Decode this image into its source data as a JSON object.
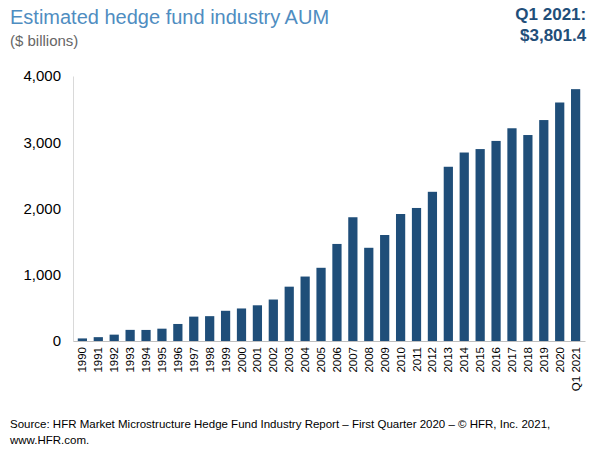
{
  "chart_data": {
    "type": "bar",
    "title": "Estimated hedge fund industry AUM",
    "subtitle": "($ billions)",
    "annotation": [
      "Q1 2021:",
      "$3,801.4"
    ],
    "source": [
      "Source: HFR Market Microstructure Hedge Fund Industry Report – First Quarter 2020 – © HFR, Inc. 2021,",
      "www.HFR.com."
    ],
    "categories": [
      "1990",
      "1991",
      "1992",
      "1993",
      "1994",
      "1995",
      "1996",
      "1997",
      "1998",
      "1999",
      "2000",
      "2001",
      "2002",
      "2003",
      "2004",
      "2005",
      "2006",
      "2007",
      "2008",
      "2009",
      "2010",
      "2011",
      "2012",
      "2013",
      "2014",
      "2015",
      "2016",
      "2017",
      "2018",
      "2019",
      "2020",
      "Q1 2021"
    ],
    "values": [
      39,
      58,
      96,
      168,
      167,
      186,
      257,
      368,
      375,
      456,
      491,
      539,
      626,
      820,
      973,
      1105,
      1465,
      1868,
      1407,
      1600,
      1917,
      2008,
      2252,
      2630,
      2845,
      2897,
      3020,
      3211,
      3109,
      3335,
      3600,
      3801.4
    ],
    "color": "#1f4e79",
    "ylim": [
      0,
      4000
    ],
    "yticks": [
      0,
      {
        "value": 1000,
        "label": "1,000"
      },
      {
        "value": 2000,
        "label": "2,000"
      },
      {
        "value": 3000,
        "label": "3,000"
      },
      {
        "value": 4000,
        "label": "4,000"
      }
    ],
    "grid": false
  }
}
